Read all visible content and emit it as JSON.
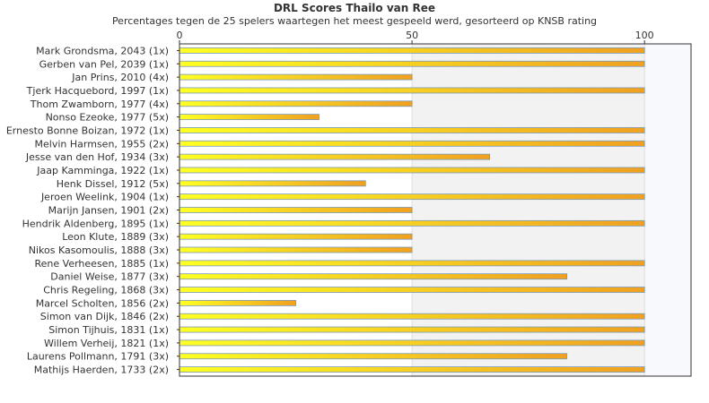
{
  "chart_data": {
    "type": "bar",
    "orientation": "horizontal",
    "title": "DRL Scores Thailo van Ree",
    "subtitle": "Percentages tegen de 25 spelers waartegen het meest gespeeld werd, gesorteerd op KNSB rating",
    "xlabel": "",
    "ylabel": "",
    "xlim": [
      0,
      110
    ],
    "xticks": [
      0,
      50,
      100
    ],
    "categories": [
      "Mark Grondsma, 2043 (1x)",
      "Gerben van Pel, 2039 (1x)",
      "Jan Prins, 2010 (4x)",
      "Tjerk Hacquebord, 1997 (1x)",
      "Thom Zwamborn, 1977 (4x)",
      "Nonso Ezeoke, 1977 (5x)",
      "Ernesto Bonne Boizan, 1972 (1x)",
      "Melvin Harmsen, 1955 (2x)",
      "Jesse van den Hof, 1934 (3x)",
      "Jaap Kamminga, 1922 (1x)",
      "Henk Dissel, 1912 (5x)",
      "Jeroen Weelink, 1904 (1x)",
      "Marijn Jansen, 1901 (2x)",
      "Hendrik Aldenberg, 1895 (1x)",
      "Leon Klute, 1889 (3x)",
      "Nikos Kasomoulis, 1888 (3x)",
      "Rene Verheesen, 1885 (1x)",
      "Daniel Weise, 1877 (3x)",
      "Chris Regeling, 1868 (3x)",
      "Marcel Scholten, 1856 (2x)",
      "Simon van Dijk, 1846 (2x)",
      "Simon Tijhuis, 1831 (1x)",
      "Willem Verheij, 1821 (1x)",
      "Laurens Pollmann, 1791 (3x)",
      "Mathijs Haerden, 1733 (2x)"
    ],
    "values": [
      100,
      100,
      50,
      100,
      50,
      30,
      100,
      100,
      66.7,
      100,
      40,
      100,
      50,
      100,
      50,
      50,
      100,
      83.3,
      100,
      25,
      100,
      100,
      100,
      83.3,
      100
    ],
    "grid": "vertical",
    "legend": "none",
    "colors": {
      "bar_start": "#ffff22",
      "bar_end": "#f0a020",
      "bar_stroke": "#7a9ab8",
      "band_a": "#ffffff",
      "band_b": "#f2f2f2",
      "band_c": "#f8f9fc",
      "axis": "#333333",
      "gridline": "#dddddd"
    }
  }
}
